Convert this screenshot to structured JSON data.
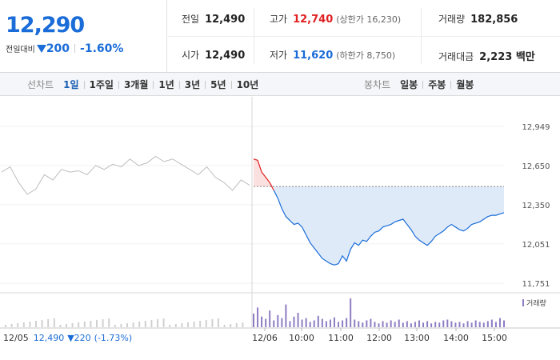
{
  "quote": {
    "current_price": "12,290",
    "change_label": "전일대비",
    "change_value": "200",
    "change_rate": "-1.60%",
    "colors": {
      "up": "#e02020",
      "down": "#1a6cd8"
    }
  },
  "stats": {
    "prev_close": {
      "label": "전일",
      "value": "12,490"
    },
    "high": {
      "label": "고가",
      "value": "12,740",
      "sub": "(상한가 16,230)"
    },
    "volume": {
      "label": "거래량",
      "value": "182,856"
    },
    "open": {
      "label": "시가",
      "value": "12,490"
    },
    "low": {
      "label": "저가",
      "value": "11,620",
      "sub": "(하한가 8,750)"
    },
    "amount": {
      "label": "거래대금",
      "value": "2,223 백만"
    }
  },
  "line_tabs": {
    "title": "선차트",
    "items": [
      "1일",
      "1주일",
      "3개월",
      "1년",
      "3년",
      "5년",
      "10년"
    ],
    "active": "1일"
  },
  "candle_tabs": {
    "title": "봉차트",
    "items": [
      "일봉",
      "주봉",
      "월봉"
    ]
  },
  "chart_data": {
    "type": "line",
    "y_ticks": [
      "12,949",
      "12,650",
      "12,350",
      "12,051",
      "11,751"
    ],
    "y_tick_values": [
      12949,
      12650,
      12350,
      12051,
      11751
    ],
    "ylim": [
      11751,
      12949
    ],
    "reference_price": 12490,
    "x_ticks": [
      "12/05",
      "12/06",
      "10:00",
      "11:00",
      "12:00",
      "13:00",
      "14:00",
      "15:00"
    ],
    "prev_day_summary": {
      "date": "12/05",
      "price": "12,490",
      "change": "▼220",
      "rate": "(-1.73%)"
    },
    "legend": "거래량",
    "prev_day_series": [
      12600,
      12640,
      12520,
      12430,
      12470,
      12580,
      12540,
      12620,
      12600,
      12610,
      12580,
      12650,
      12620,
      12660,
      12640,
      12700,
      12650,
      12670,
      12720,
      12680,
      12700,
      12660,
      12620,
      12580,
      12640,
      12560,
      12520,
      12460,
      12540,
      12500
    ],
    "today_series": [
      12700,
      12690,
      12600,
      12560,
      12520,
      12460,
      12400,
      12320,
      12260,
      12230,
      12200,
      12210,
      12180,
      12120,
      12060,
      12020,
      11980,
      11940,
      11920,
      11900,
      11890,
      11900,
      11960,
      11920,
      12010,
      12060,
      12040,
      12080,
      12070,
      12110,
      12140,
      12150,
      12180,
      12190,
      12200,
      12220,
      12230,
      12240,
      12200,
      12160,
      12110,
      12080,
      12060,
      12040,
      12070,
      12110,
      12130,
      12150,
      12180,
      12200,
      12180,
      12160,
      12150,
      12170,
      12200,
      12210,
      12220,
      12240,
      12260,
      12270,
      12270,
      12280,
      12290
    ],
    "volume_today": [
      18,
      26,
      14,
      11,
      22,
      9,
      16,
      12,
      30,
      8,
      14,
      19,
      10,
      12,
      7,
      9,
      15,
      11,
      8,
      10,
      13,
      7,
      9,
      12,
      38,
      10,
      8,
      6,
      9,
      11,
      7,
      5,
      8,
      6,
      9,
      7,
      10,
      6,
      8,
      5,
      7,
      9,
      6,
      8,
      5,
      7,
      6,
      9,
      10,
      8,
      6,
      7,
      5,
      8,
      6,
      9,
      7,
      6,
      8,
      10,
      7,
      12,
      9
    ]
  }
}
